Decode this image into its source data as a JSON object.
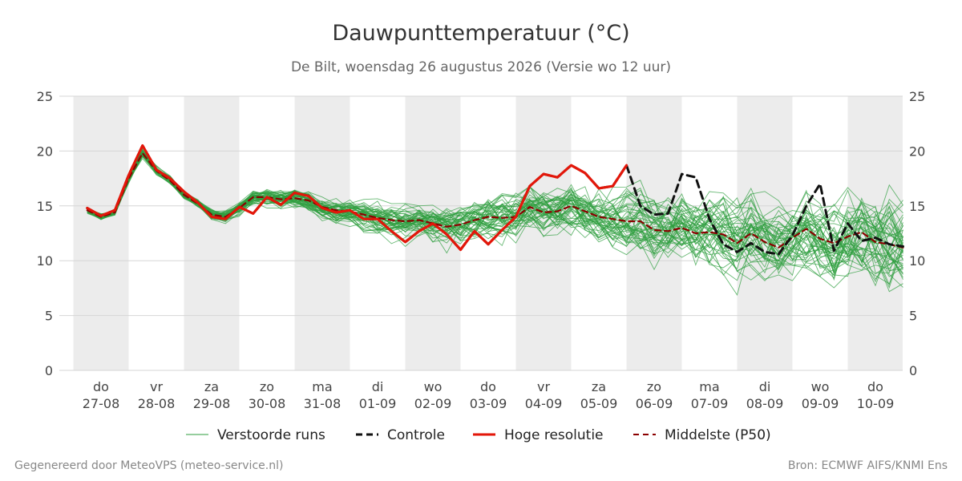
{
  "chart_data": {
    "type": "line",
    "title": "Dauwpunttemperatuur (°C)",
    "subtitle": "De Bilt, woensdag 26 augustus 2026 (Versie wo 12 uur)",
    "ylim": [
      0,
      25
    ],
    "yticks": [
      0,
      5,
      10,
      15,
      20,
      25
    ],
    "xlim": [
      -0.75,
      14.5
    ],
    "grid": true,
    "day_labels": [
      {
        "pos": 0,
        "dow": "do",
        "date": "27-08"
      },
      {
        "pos": 1,
        "dow": "vr",
        "date": "28-08"
      },
      {
        "pos": 2,
        "dow": "za",
        "date": "29-08"
      },
      {
        "pos": 3,
        "dow": "zo",
        "date": "30-08"
      },
      {
        "pos": 4,
        "dow": "ma",
        "date": "31-08"
      },
      {
        "pos": 5,
        "dow": "di",
        "date": "01-09"
      },
      {
        "pos": 6,
        "dow": "wo",
        "date": "02-09"
      },
      {
        "pos": 7,
        "dow": "do",
        "date": "03-09"
      },
      {
        "pos": 8,
        "dow": "vr",
        "date": "04-09"
      },
      {
        "pos": 9,
        "dow": "za",
        "date": "05-09"
      },
      {
        "pos": 10,
        "dow": "zo",
        "date": "06-09"
      },
      {
        "pos": 11,
        "dow": "ma",
        "date": "07-09"
      },
      {
        "pos": 12,
        "dow": "di",
        "date": "08-09"
      },
      {
        "pos": 13,
        "dow": "wo",
        "date": "09-09"
      },
      {
        "pos": 14,
        "dow": "do",
        "date": "10-09"
      }
    ],
    "shaded_days": [
      0,
      2,
      4,
      6,
      8,
      10,
      12,
      14
    ],
    "series": [
      {
        "name": "Hoge resolutie",
        "color": "#e3170a",
        "style": "solid",
        "x": [
          -0.25,
          0,
          0.25,
          0.5,
          0.75,
          1,
          1.25,
          1.5,
          1.75,
          2,
          2.25,
          2.5,
          2.75,
          3,
          3.25,
          3.5,
          3.75,
          4,
          4.25,
          4.5,
          4.75,
          5,
          5.25,
          5.5,
          5.75,
          6,
          6.25,
          6.5,
          6.75,
          7,
          7.25,
          7.5,
          7.75,
          8,
          8.25,
          8.5,
          8.75,
          9,
          9.25,
          9.5
        ],
        "values": [
          14.8,
          14.1,
          14.6,
          17.8,
          20.5,
          18.3,
          17.5,
          16.3,
          15.3,
          14.0,
          13.8,
          14.9,
          14.3,
          15.8,
          15.1,
          16.2,
          15.9,
          14.8,
          14.4,
          14.6,
          13.8,
          13.8,
          12.7,
          11.7,
          12.7,
          13.4,
          12.4,
          11.0,
          12.7,
          11.5,
          12.8,
          14.0,
          16.8,
          17.9,
          17.6,
          18.7,
          18.0,
          16.6,
          16.8,
          18.7
        ]
      },
      {
        "name": "Controle",
        "color": "#111111",
        "style": "dashed",
        "x": [
          -0.25,
          0,
          0.25,
          0.5,
          0.75,
          1,
          1.25,
          1.5,
          1.75,
          2,
          2.25,
          2.5,
          2.75,
          3,
          3.25,
          3.5,
          3.75,
          4,
          4.25,
          4.5,
          4.75,
          5,
          5.25,
          5.5,
          5.75,
          6,
          6.25,
          6.5,
          6.75,
          7,
          7.25,
          7.5,
          7.75,
          8,
          8.25,
          8.5,
          8.75,
          9,
          9.25,
          9.5,
          9.75,
          10,
          10.25,
          10.5,
          10.75,
          11,
          11.25,
          11.5,
          11.75,
          12,
          12.25,
          12.5,
          12.75,
          13,
          13.25,
          13.5,
          13.75,
          14,
          14.25,
          14.5
        ],
        "values": [
          14.8,
          14.1,
          14.6,
          17.8,
          20.5,
          18.3,
          17.5,
          16.3,
          15.3,
          14.0,
          13.8,
          14.9,
          14.3,
          15.8,
          15.1,
          16.2,
          15.9,
          14.8,
          14.4,
          14.6,
          13.8,
          13.8,
          12.7,
          11.7,
          12.7,
          13.4,
          12.4,
          11.0,
          12.7,
          11.5,
          12.8,
          14.0,
          16.8,
          17.9,
          17.6,
          18.7,
          18.0,
          16.6,
          16.8,
          18.7,
          15.0,
          14.2,
          14.3,
          17.9,
          17.6,
          13.8,
          11.5,
          10.8,
          11.6,
          10.8,
          10.6,
          12.3,
          15.0,
          17.0,
          10.9,
          13.4,
          11.8,
          12.1,
          11.5,
          11.3
        ]
      },
      {
        "name": "Middelste (P50)",
        "color": "#8b0000",
        "style": "dashed",
        "x": [
          -0.25,
          0,
          0.25,
          0.5,
          0.75,
          1,
          1.25,
          1.5,
          1.75,
          2,
          2.25,
          2.5,
          2.75,
          3,
          3.25,
          3.5,
          3.75,
          4,
          4.25,
          4.5,
          4.75,
          5,
          5.25,
          5.5,
          5.75,
          6,
          6.25,
          6.5,
          6.75,
          7,
          7.25,
          7.5,
          7.75,
          8,
          8.25,
          8.5,
          8.75,
          9,
          9.25,
          9.5,
          9.75,
          10,
          10.25,
          10.5,
          10.75,
          11,
          11.25,
          11.5,
          11.75,
          12,
          12.25,
          12.5,
          12.75,
          13,
          13.25,
          13.5,
          13.75,
          14,
          14.25,
          14.5
        ],
        "values": [
          14.6,
          14.0,
          14.4,
          17.5,
          19.8,
          18.2,
          17.3,
          16.0,
          15.2,
          14.2,
          14.0,
          14.8,
          15.8,
          15.8,
          15.6,
          15.7,
          15.5,
          14.9,
          14.6,
          14.5,
          14.2,
          13.9,
          13.7,
          13.6,
          13.7,
          13.4,
          13.1,
          13.3,
          13.7,
          14.0,
          13.9,
          14.0,
          14.9,
          14.4,
          14.5,
          15.0,
          14.5,
          14.0,
          13.8,
          13.6,
          13.6,
          12.8,
          12.7,
          13.0,
          12.5,
          12.6,
          12.4,
          11.6,
          12.5,
          11.7,
          11.2,
          12.1,
          12.9,
          12.0,
          11.6,
          12.2,
          12.6,
          11.7,
          11.5,
          11.2
        ]
      }
    ],
    "ensemble": {
      "name": "Verstoorde runs",
      "color": "#2e9e3e",
      "members": 50
    }
  },
  "legend": {
    "items": [
      {
        "label": "Verstoorde runs"
      },
      {
        "label": "Controle"
      },
      {
        "label": "Hoge resolutie"
      },
      {
        "label": "Middelste (P50)"
      }
    ]
  },
  "footer": {
    "left": "Gegenereerd door MeteoVPS (meteo-service.nl)",
    "right": "Bron: ECMWF AIFS/KNMI Ens"
  }
}
